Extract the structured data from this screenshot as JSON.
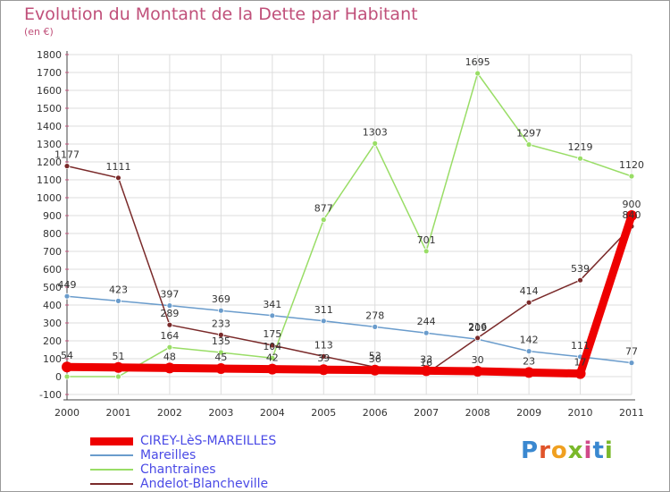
{
  "header": {
    "title": "Evolution du Montant de la Dette par Habitant",
    "subtitle": "(en €)"
  },
  "logo": {
    "letters": [
      "P",
      "r",
      "o",
      "x",
      "i",
      "t",
      "i"
    ],
    "colors": [
      "#3a88d0",
      "#e0542a",
      "#f0a020",
      "#7ab82a",
      "#d04a8a",
      "#3a88d0",
      "#7ab82a"
    ]
  },
  "chart_data": {
    "type": "line",
    "x": [
      "2000",
      "2001",
      "2002",
      "2003",
      "2004",
      "2005",
      "2006",
      "2007",
      "2008",
      "2009",
      "2010",
      "2011"
    ],
    "ylim": [
      -100,
      1800
    ],
    "yticks": [
      -100,
      0,
      100,
      200,
      300,
      400,
      500,
      600,
      700,
      800,
      900,
      1000,
      1100,
      1200,
      1300,
      1400,
      1500,
      1600,
      1700,
      1800
    ],
    "grid": true,
    "legend_position": "bottom-left",
    "series": [
      {
        "name": "CIREY-LèS-MAREILLES",
        "color": "#ee0000",
        "width": 9,
        "values": [
          54,
          51,
          48,
          45,
          42,
          39,
          36,
          33,
          30,
          23,
          17,
          900
        ],
        "labels": [
          "54",
          "51",
          "48",
          "45",
          "42",
          "39",
          "36",
          "33",
          "30",
          "23",
          "17",
          "900"
        ]
      },
      {
        "name": "Mareilles",
        "color": "#6a9ccc",
        "width": 1.5,
        "values": [
          449,
          423,
          397,
          369,
          341,
          311,
          278,
          244,
          209,
          142,
          111,
          77
        ],
        "labels": [
          "449",
          "423",
          "397",
          "369",
          "341",
          "311",
          "278",
          "244",
          "209",
          "142",
          "111",
          "77"
        ]
      },
      {
        "name": "Chantraines",
        "color": "#99dd66",
        "width": 1.5,
        "values": [
          0,
          0,
          164,
          135,
          104,
          877,
          1303,
          701,
          1695,
          1297,
          1219,
          1120
        ],
        "labels": [
          "",
          "",
          "164",
          "135",
          "104",
          "877",
          "1303",
          "701",
          "1695",
          "1297",
          "1219",
          "1120"
        ]
      },
      {
        "name": "Andelot-Blancheville",
        "color": "#7a2a2a",
        "width": 1.5,
        "values": [
          1177,
          1111,
          289,
          233,
          175,
          113,
          53,
          16,
          216,
          414,
          539,
          840
        ],
        "labels": [
          "1177",
          "1111",
          "289",
          "233",
          "175",
          "113",
          "53",
          "16",
          "216",
          "414",
          "539",
          "840"
        ]
      }
    ]
  }
}
